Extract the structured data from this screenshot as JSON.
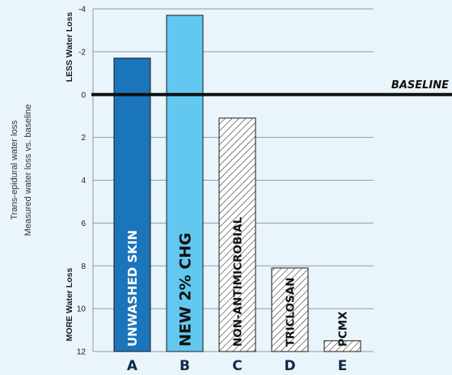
{
  "chart_data": {
    "type": "bar",
    "ylabel_lines": [
      "Trans-epidural water loss",
      "Measured water loss vs. baseline"
    ],
    "y_tick_labels": [
      "-4",
      "-2",
      "0",
      "2",
      "4",
      "6",
      "8",
      "10",
      "12"
    ],
    "ylim": [
      -4,
      12
    ],
    "y_inverted": true,
    "grid": true,
    "top_label": "LESS  Water Loss",
    "bottom_label": "MORE Water Loss",
    "baseline_label": "BASELINE",
    "categories": [
      "A",
      "B",
      "C",
      "D",
      "E"
    ],
    "bar_labels": [
      "UNWASHED SKIN",
      "NEW 2% CHG",
      "NON-ANTIMICROBIAL",
      "TRICLOSAN",
      "PCMX"
    ],
    "values": [
      -1.7,
      -3.7,
      1.1,
      8.1,
      11.5
    ],
    "bar_styles": [
      "solid",
      "solid",
      "hatched",
      "hatched",
      "hatched"
    ],
    "bar_colors": [
      "#1a75bb",
      "#62c8ef",
      "#ffffff",
      "#ffffff",
      "#ffffff"
    ],
    "label_colors": [
      "#ffffff",
      "#111111",
      "#111111",
      "#111111",
      "#111111"
    ]
  }
}
